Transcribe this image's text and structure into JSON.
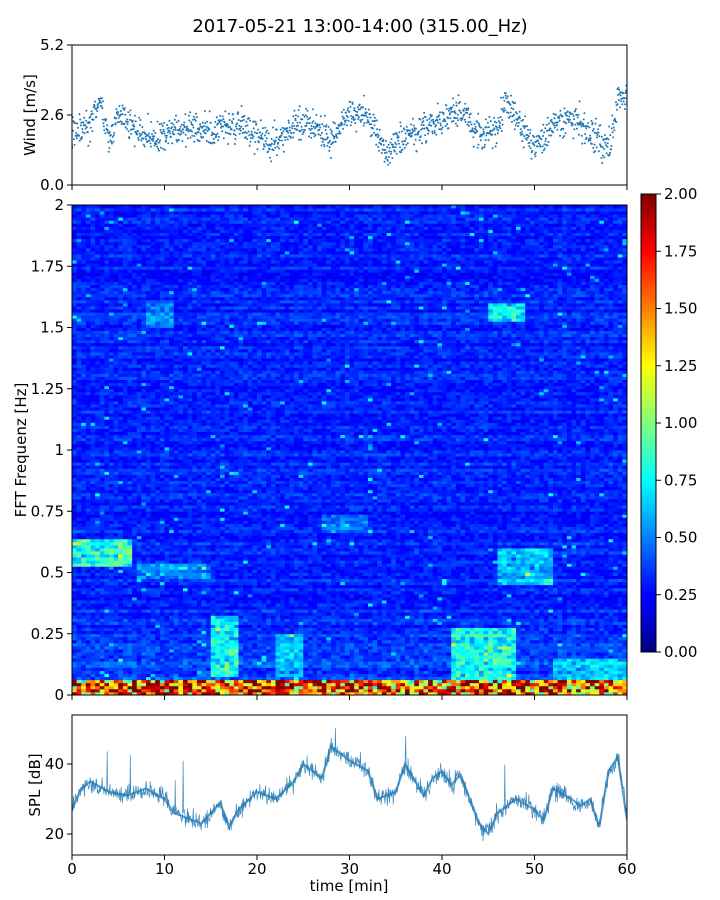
{
  "figure": {
    "title": "2017-05-21 13:00-14:00 (315.00_Hz)"
  },
  "chart_data": [
    {
      "type": "scatter",
      "panel": "wind",
      "ylabel": "Wind [m/s]",
      "xlim": [
        0,
        60
      ],
      "ylim": [
        0,
        5.2
      ],
      "yticks": [
        0.0,
        2.6,
        5.2
      ],
      "ytick_labels": [
        "0.0",
        "2.6",
        "5.2"
      ],
      "marker_color": "#1f77b4",
      "series": [
        {
          "x": [
            0,
            2,
            3,
            4,
            5,
            7,
            9,
            12,
            15,
            18,
            20,
            22,
            24,
            26,
            28,
            30,
            32,
            34,
            36,
            38,
            40,
            42,
            44,
            46,
            47,
            48,
            50,
            52,
            54,
            56,
            58,
            59,
            60
          ],
          "y": [
            1.9,
            2.2,
            3.2,
            1.6,
            2.6,
            2.0,
            1.7,
            2.1,
            2.0,
            2.3,
            1.8,
            1.5,
            2.2,
            2.3,
            1.7,
            2.8,
            2.5,
            1.1,
            1.8,
            2.1,
            2.4,
            2.8,
            1.8,
            2.0,
            3.2,
            2.5,
            1.4,
            2.2,
            2.5,
            1.9,
            1.4,
            3.2,
            3.0
          ]
        }
      ]
    },
    {
      "type": "heatmap",
      "panel": "spectrogram",
      "ylabel": "FFT Frequenz [Hz]",
      "xlim": [
        0,
        60
      ],
      "ylim": [
        0,
        2
      ],
      "yticks": [
        0,
        0.25,
        0.5,
        0.75,
        1,
        1.25,
        1.5,
        1.75,
        2
      ],
      "ytick_labels": [
        "0",
        "0.25",
        "0.5",
        "0.75",
        "1",
        "1.25",
        "1.5",
        "1.75",
        "2"
      ],
      "colormap": "jet",
      "colorbar": {
        "vmin": 0.0,
        "vmax": 2.0,
        "ticks": [
          0.0,
          0.25,
          0.5,
          0.75,
          1.0,
          1.25,
          1.5,
          1.75,
          2.0
        ],
        "tick_labels": [
          "0.00",
          "0.25",
          "0.50",
          "0.75",
          "1.00",
          "1.25",
          "1.50",
          "1.75",
          "2.00"
        ]
      }
    },
    {
      "type": "line",
      "panel": "spl",
      "xlabel": "time [min]",
      "ylabel": "SPL [dB]",
      "xlim": [
        0,
        60
      ],
      "ylim": [
        14,
        54
      ],
      "xticks": [
        0,
        10,
        20,
        30,
        40,
        50,
        60
      ],
      "xtick_labels": [
        "0",
        "10",
        "20",
        "30",
        "40",
        "50",
        "60"
      ],
      "yticks": [
        20,
        40
      ],
      "ytick_labels": [
        "20",
        "40"
      ],
      "line_color": "#1f77b4",
      "series": [
        {
          "x": [
            0,
            1,
            2,
            4,
            6,
            8,
            10,
            11,
            12,
            14,
            16,
            17,
            18,
            20,
            22,
            24,
            25,
            27,
            28,
            30,
            32,
            33,
            35,
            36,
            38,
            39,
            40,
            41,
            42,
            43,
            44,
            45,
            46,
            48,
            50,
            51,
            52,
            54,
            55,
            56,
            57,
            58,
            59,
            60
          ],
          "y": [
            27,
            33,
            35,
            32,
            31,
            33,
            30,
            26,
            25,
            23,
            29,
            22,
            27,
            32,
            30,
            35,
            40,
            36,
            45,
            41,
            38,
            30,
            32,
            40,
            31,
            36,
            38,
            34,
            37,
            30,
            23,
            20,
            26,
            30,
            27,
            24,
            33,
            30,
            28,
            30,
            22,
            38,
            42,
            24
          ]
        }
      ]
    }
  ]
}
